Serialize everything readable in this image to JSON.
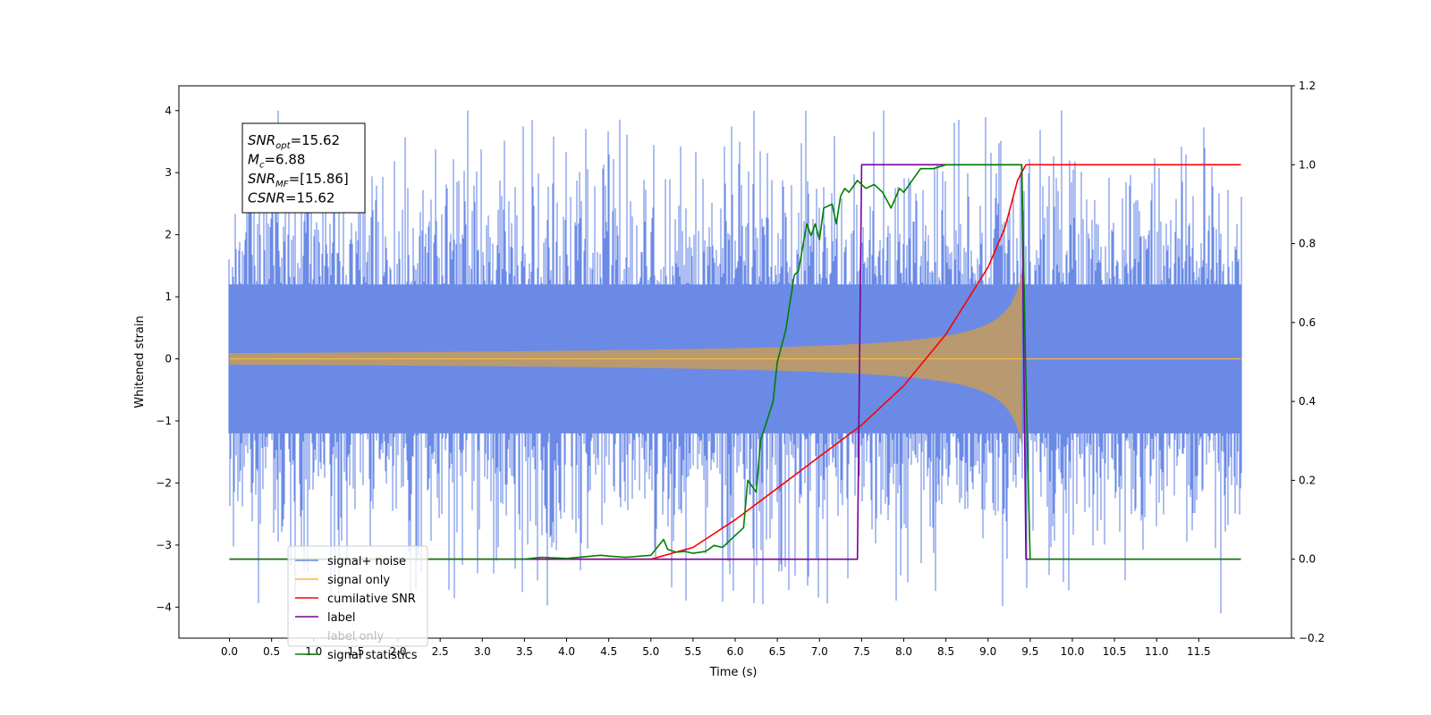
{
  "chart_data": {
    "type": "line",
    "xlabel": "Time (s)",
    "ylabel": "Whitened strain",
    "xlim": [
      -0.6,
      12.6
    ],
    "ylim": [
      -4.5,
      4.4
    ],
    "y2lim": [
      -0.2,
      1.2
    ],
    "x_ticks": [
      "0.0",
      "0.5",
      "1.0",
      "1.5",
      "2.0",
      "2.5",
      "3.0",
      "3.5",
      "4.0",
      "4.5",
      "5.0",
      "5.5",
      "6.0",
      "6.5",
      "7.0",
      "7.5",
      "8.0",
      "8.5",
      "9.0",
      "9.5",
      "10.0",
      "10.5",
      "11.0",
      "11.5"
    ],
    "y_ticks": [
      "4",
      "3",
      "2",
      "1",
      "0",
      "−1",
      "−2",
      "−3",
      "−4"
    ],
    "y2_ticks": [
      "1.2",
      "1.0",
      "0.8",
      "0.6",
      "0.4",
      "0.2",
      "0.0",
      "−0.2"
    ],
    "annotation": [
      {
        "sym": "SNR",
        "sub": "opt",
        "val": "=15.62"
      },
      {
        "sym": "M",
        "sub": "c",
        "val": "=6.88"
      },
      {
        "sym": "SNR",
        "sub": "MF",
        "val": "=[15.86]"
      },
      {
        "sym": "CSNR",
        "sub": "",
        "val": "=15.62"
      }
    ],
    "legend_position": "lower-left",
    "series": [
      {
        "name": "signal+ noise",
        "color": "#6a8ae6",
        "axis": "left",
        "kind": "noise",
        "t_range": [
          0.0,
          12.0
        ],
        "typical_amplitude": 1.6,
        "peak_range": [
          -4.1,
          4.0
        ]
      },
      {
        "name": "signal only",
        "color": "#f5b942",
        "axis": "left",
        "kind": "chirp",
        "t_start": 0.0,
        "t_merger": 9.4,
        "t_end": 12.0,
        "peak_amplitude": 1.4
      },
      {
        "name": "cumilative SNR",
        "color": "#ff0000",
        "axis": "right",
        "x": [
          0,
          5.0,
          5.5,
          6.0,
          6.5,
          7.0,
          7.5,
          8.0,
          8.5,
          9.0,
          9.2,
          9.35,
          9.45,
          12.0
        ],
        "y": [
          0,
          0,
          0.03,
          0.1,
          0.18,
          0.26,
          0.34,
          0.44,
          0.57,
          0.74,
          0.84,
          0.96,
          1.0,
          1.0
        ]
      },
      {
        "name": "label",
        "color": "#7b0099",
        "axis": "right",
        "x": [
          0,
          7.45,
          7.5,
          9.4,
          9.45,
          12.0
        ],
        "y": [
          0,
          0,
          1.0,
          1.0,
          0,
          0
        ]
      },
      {
        "name": "label only",
        "color": "#cccccc",
        "axis": "right",
        "legend_only": true
      },
      {
        "name": "signal statistics",
        "color": "#008000",
        "axis": "right",
        "x": [
          0,
          3.5,
          3.7,
          4.0,
          4.4,
          4.5,
          4.7,
          5.0,
          5.15,
          5.2,
          5.3,
          5.4,
          5.5,
          5.65,
          5.75,
          5.85,
          5.95,
          6.0,
          6.1,
          6.15,
          6.25,
          6.3,
          6.45,
          6.5,
          6.6,
          6.7,
          6.75,
          6.85,
          6.9,
          6.95,
          7.0,
          7.05,
          7.15,
          7.2,
          7.25,
          7.3,
          7.35,
          7.45,
          7.55,
          7.65,
          7.75,
          7.85,
          7.95,
          8.0,
          8.1,
          8.2,
          8.35,
          8.5,
          8.6,
          9.0,
          9.3,
          9.4,
          9.45,
          9.5,
          12.0
        ],
        "y": [
          0,
          0,
          0.005,
          0.002,
          0.01,
          0.008,
          0.005,
          0.01,
          0.05,
          0.025,
          0.018,
          0.02,
          0.015,
          0.02,
          0.035,
          0.03,
          0.05,
          0.06,
          0.08,
          0.2,
          0.17,
          0.3,
          0.4,
          0.5,
          0.58,
          0.72,
          0.73,
          0.85,
          0.82,
          0.85,
          0.81,
          0.89,
          0.9,
          0.85,
          0.92,
          0.94,
          0.93,
          0.96,
          0.94,
          0.95,
          0.93,
          0.89,
          0.94,
          0.93,
          0.96,
          0.99,
          0.99,
          1.0,
          1.0,
          1.0,
          1.0,
          1.0,
          0.45,
          0.0,
          0.0
        ]
      }
    ]
  }
}
